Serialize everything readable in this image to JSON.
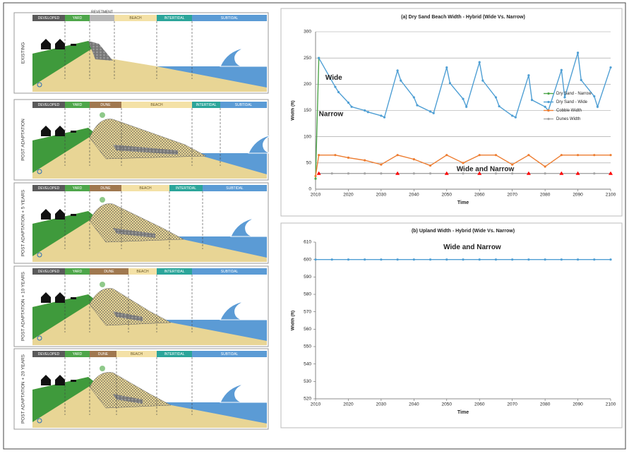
{
  "diagrams": [
    {
      "label": "EXISTING",
      "zones": [
        "DEVELOPED",
        "YARD",
        "REVETMENT",
        "BEACH",
        "INTERTIDAL",
        "SUBTIDAL"
      ]
    },
    {
      "label": "POST ADAPTATION",
      "zones": [
        "DEVELOPED",
        "YARD",
        "DUNE",
        "BEACH",
        "INTERTIDAL",
        "SUBTIDAL"
      ]
    },
    {
      "label": "POST ADAPTATION + 5 YEARS",
      "zones": [
        "DEVELOPED",
        "YARD",
        "DUNE",
        "BEACH",
        "INTERTIDAL",
        "SUBTIDAL"
      ]
    },
    {
      "label": "POST ADAPTATION + 10 YEARS",
      "zones": [
        "DEVELOPED",
        "YARD",
        "DUNE",
        "BEACH",
        "INTERTIDAL",
        "SUBTIDAL"
      ]
    },
    {
      "label": "POST ADAPTATION + 20 YEARS",
      "zones": [
        "DEVELOPED",
        "YARD",
        "DUNE",
        "BEACH",
        "INTERTIDAL",
        "SUBTIDAL"
      ]
    }
  ],
  "chart_data": [
    {
      "type": "line",
      "title": "(a) Dry Sand Beach Width - Hybrid (Wide Vs. Narrow)",
      "x_label": "Time",
      "y_label": "Width (ft)",
      "xlim": [
        2010,
        2100
      ],
      "xticks": [
        2010,
        2020,
        2030,
        2040,
        2050,
        2060,
        2070,
        2080,
        2090,
        2100
      ],
      "ylim": [
        0,
        300
      ],
      "yticks": [
        0,
        50,
        100,
        150,
        200,
        250,
        300
      ],
      "grid": true,
      "legend": "right",
      "annotations": [
        "Wide",
        "Narrow",
        "Wide and Narrow"
      ],
      "series": [
        {
          "name": "Dry Sand - Narrow",
          "color": "#4ea64a",
          "x": [
            2010,
            2011
          ],
          "values": [
            20,
            250
          ]
        },
        {
          "name": "Dry Sand - Wide",
          "color": "#4f9fd4",
          "x": [
            2011,
            2016,
            2017,
            2020,
            2021,
            2025,
            2026,
            2030,
            2031,
            2035,
            2036,
            2040,
            2041,
            2045,
            2046,
            2050,
            2051,
            2055,
            2056,
            2060,
            2061,
            2065,
            2066,
            2070,
            2071,
            2075,
            2076,
            2080,
            2081,
            2085,
            2086,
            2090,
            2091,
            2095,
            2096,
            2100
          ],
          "values": [
            250,
            195,
            185,
            165,
            157,
            150,
            147,
            140,
            137,
            226,
            207,
            175,
            160,
            148,
            145,
            232,
            202,
            172,
            157,
            242,
            207,
            175,
            158,
            140,
            137,
            217,
            170,
            157,
            150,
            227,
            175,
            260,
            208,
            177,
            157,
            232
          ]
        },
        {
          "name": "Cobble Width",
          "color": "#ed7d31",
          "x": [
            2010,
            2011,
            2016,
            2020,
            2025,
            2030,
            2035,
            2040,
            2045,
            2050,
            2055,
            2060,
            2065,
            2070,
            2075,
            2080,
            2085,
            2090,
            2095,
            2100
          ],
          "values": [
            25,
            65,
            65,
            60,
            55,
            47,
            65,
            57,
            45,
            65,
            50,
            65,
            65,
            47,
            65,
            43,
            65,
            65,
            65,
            65
          ]
        },
        {
          "name": "Dunes Width",
          "color": "#a5a5a5",
          "x": [
            2011,
            2015,
            2020,
            2025,
            2030,
            2035,
            2040,
            2045,
            2050,
            2055,
            2060,
            2065,
            2070,
            2075,
            2080,
            2085,
            2090,
            2095,
            2100
          ],
          "values": [
            30,
            30,
            30,
            30,
            30,
            30,
            30,
            30,
            30,
            30,
            30,
            30,
            30,
            30,
            30,
            30,
            30,
            30,
            30
          ]
        },
        {
          "color": "#ff0000",
          "marker": "triangle",
          "x": [
            2011,
            2035,
            2050,
            2060,
            2075,
            2085,
            2090,
            2100
          ],
          "values": [
            30,
            30,
            30,
            30,
            30,
            30,
            30,
            30
          ]
        }
      ]
    },
    {
      "type": "line",
      "title": "(b) Upland Width - Hybrid (Wide Vs. Narrow)",
      "x_label": "Time",
      "y_label": "Width (ft)",
      "xlim": [
        2010,
        2100
      ],
      "xticks": [
        2010,
        2020,
        2030,
        2040,
        2050,
        2060,
        2070,
        2080,
        2090,
        2100
      ],
      "ylim": [
        520,
        610
      ],
      "yticks": [
        520,
        530,
        540,
        550,
        560,
        570,
        580,
        590,
        600,
        610
      ],
      "grid": false,
      "annotations": [
        "Wide and Narrow"
      ],
      "series": [
        {
          "color": "#4f9fd4",
          "x": [
            2010,
            2015,
            2020,
            2025,
            2030,
            2035,
            2040,
            2045,
            2050,
            2055,
            2060,
            2065,
            2070,
            2075,
            2080,
            2085,
            2090,
            2095,
            2100
          ],
          "values": [
            600,
            600,
            600,
            600,
            600,
            600,
            600,
            600,
            600,
            600,
            600,
            600,
            600,
            600,
            600,
            600,
            600,
            600,
            600
          ]
        }
      ]
    }
  ]
}
